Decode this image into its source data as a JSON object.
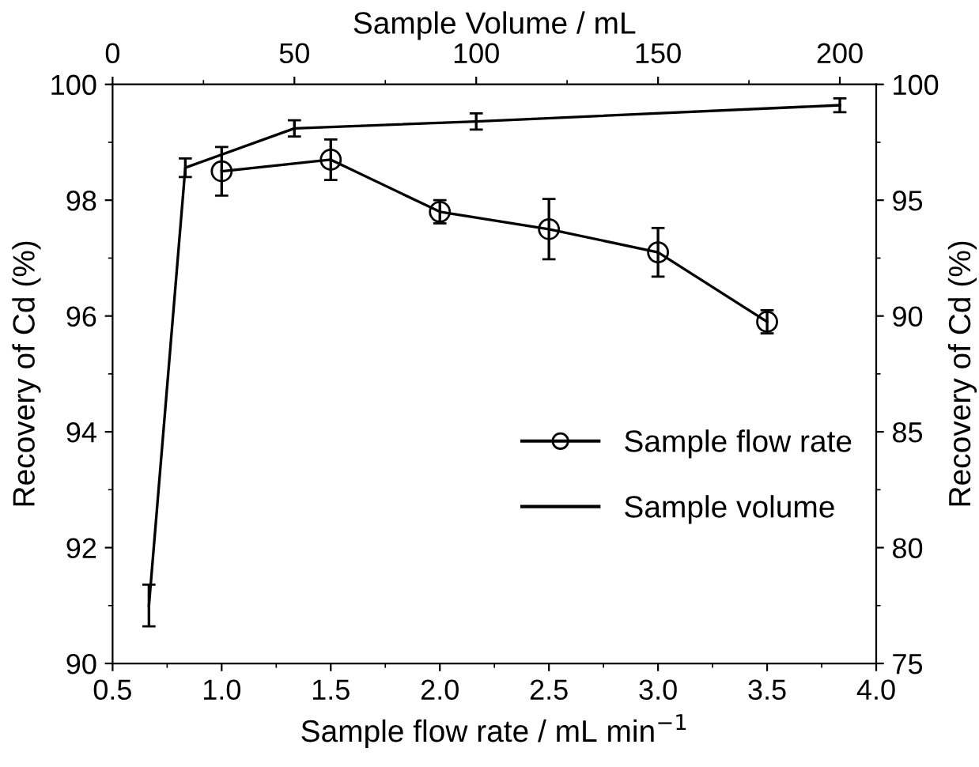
{
  "chart_data": [
    {
      "type": "line",
      "xlabel": "Sample flow rate / mL min$^{−1}$",
      "ylabel": "Recovery of Cd (%)",
      "xlim": [
        0.5,
        4.0
      ],
      "xticks": [
        {
          "value": 0.5,
          "label": "0.5"
        },
        {
          "value": 1.0,
          "label": "1.0"
        },
        {
          "value": 1.5,
          "label": "1.5"
        },
        {
          "value": 2.0,
          "label": "2.0"
        },
        {
          "value": 2.5,
          "label": "2.5"
        },
        {
          "value": 3.0,
          "label": "3.0"
        },
        {
          "value": 3.5,
          "label": "3.5"
        },
        {
          "value": 4.0,
          "label": "4.0"
        }
      ],
      "ylim": [
        90,
        100
      ],
      "yticks": [
        90,
        92,
        94,
        96,
        98,
        100
      ],
      "legend": "right",
      "marker": "circle",
      "series": [
        {
          "name": "Sample flow rate",
          "color": "#000000",
          "x": [
            1.0,
            1.5,
            2.0,
            2.5,
            3.0,
            3.5
          ],
          "values": [
            98.5,
            98.7,
            97.8,
            97.5,
            97.1,
            95.9
          ],
          "errors": [
            0.42,
            0.35,
            0.2,
            0.52,
            0.42,
            0.2
          ]
        }
      ]
    },
    {
      "type": "line",
      "xlabel": "Sample Volume / mL",
      "ylabel": "Recovery of Cd (%)",
      "xlim": [
        0,
        210
      ],
      "xticks": [
        0,
        50,
        100,
        150,
        200
      ],
      "ylim": [
        75,
        100
      ],
      "yticks": [
        75,
        80,
        85,
        90,
        95,
        100
      ],
      "legend": "right",
      "series": [
        {
          "name": "Sample volume",
          "color": "#000000",
          "x": [
            10,
            20,
            50,
            100,
            200
          ],
          "values": [
            77.5,
            96.4,
            98.1,
            98.4,
            99.1
          ],
          "errors": [
            0.9,
            0.4,
            0.35,
            0.35,
            0.3
          ]
        }
      ]
    }
  ]
}
